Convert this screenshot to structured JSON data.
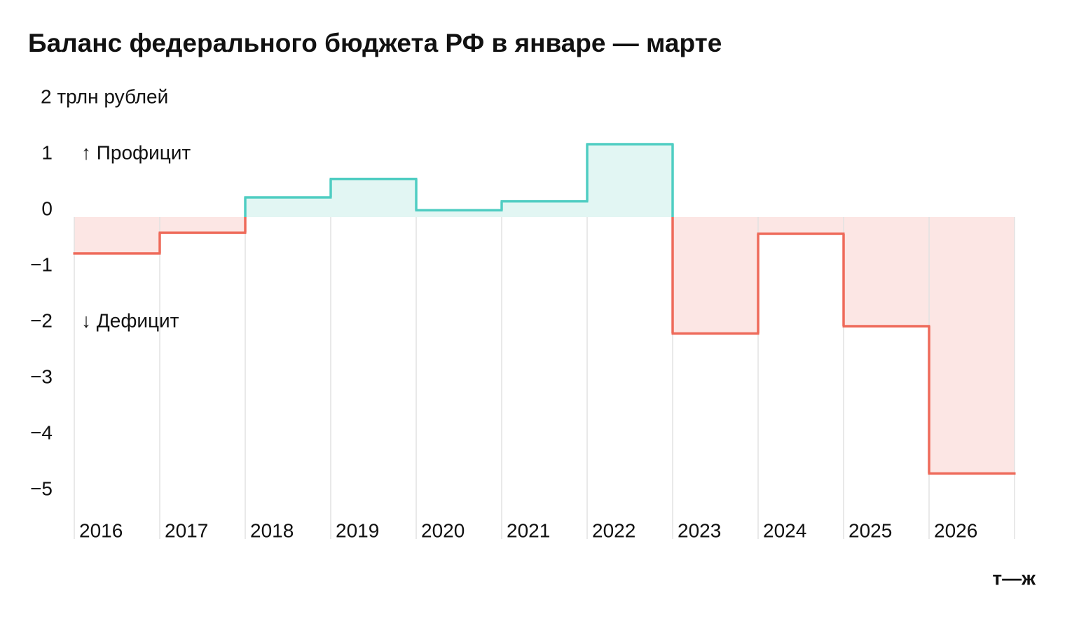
{
  "chart_data": {
    "type": "step",
    "title": "Баланс федерального бюджета РФ в январе — марте",
    "categories": [
      "2016",
      "2017",
      "2018",
      "2019",
      "2020",
      "2021",
      "2022",
      "2023",
      "2024",
      "2025",
      "2026"
    ],
    "values": [
      -0.65,
      -0.28,
      0.35,
      0.68,
      0.12,
      0.28,
      1.3,
      -2.08,
      -0.3,
      -1.95,
      -4.58
    ],
    "ylim": [
      -5.75,
      2
    ],
    "yticks": [
      {
        "value": 2,
        "label": "2 трлн рублей"
      },
      1,
      0,
      {
        "value": -1,
        "label": "−1"
      },
      {
        "value": -2,
        "label": "−2"
      },
      {
        "value": -3,
        "label": "−3"
      },
      {
        "value": -4,
        "label": "−4"
      },
      {
        "value": -5,
        "label": "−5"
      }
    ],
    "grid": true,
    "positive_color": "#4fcdc2",
    "negative_color": "#ee6a5a",
    "positive_fill": "#e2f6f3",
    "negative_fill": "#fce6e4",
    "annotations": [
      "↑ Профицит",
      "↓ Дефицит"
    ],
    "logo": "т—ж"
  }
}
